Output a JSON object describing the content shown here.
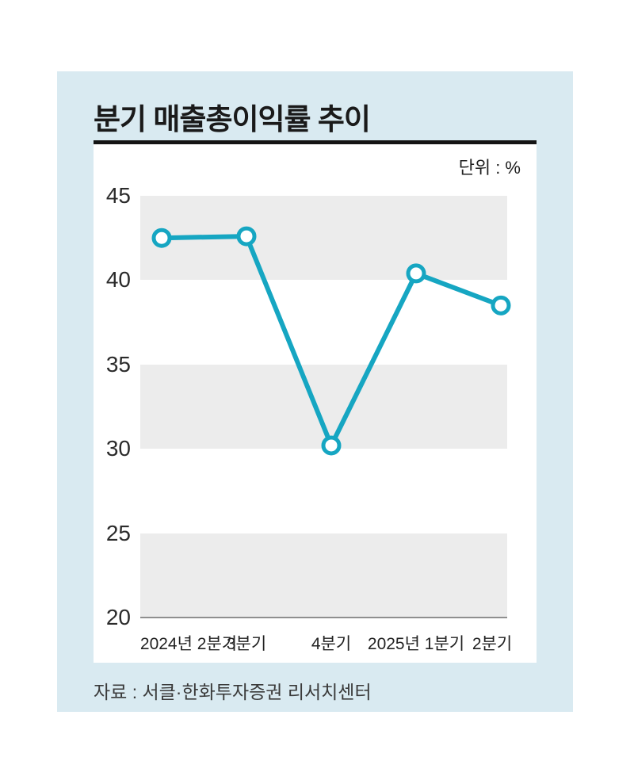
{
  "header": {
    "title": "분기 매출총이익률 추이",
    "unit_label": "단위 : %"
  },
  "source": "자료 : 서클·한화투자증권 리서치센터",
  "colors": {
    "panel_background": "#d9eaf1",
    "card_background": "#ffffff",
    "band_gray": "#ececec",
    "line_teal": "#16a6c2",
    "marker_fill": "#ffffff",
    "axis_line": "#8f8f8f",
    "title_text": "#1a1a1a"
  },
  "chart_data": {
    "type": "line",
    "title": "분기 매출총이익률 추이",
    "unit": "%",
    "categories": [
      "2024년 2분기",
      "3분기",
      "4분기",
      "2025년 1분기",
      "2분기"
    ],
    "values": [
      42.5,
      42.6,
      30.2,
      40.4,
      38.5
    ],
    "ylim": [
      20,
      45
    ],
    "yticks": [
      45,
      40,
      35,
      30,
      25,
      20
    ],
    "shaded_bands": [
      [
        40,
        45
      ],
      [
        30,
        35
      ],
      [
        20,
        25
      ]
    ],
    "xlabel": "",
    "ylabel": "",
    "legend": "none",
    "grid": "banded-rows",
    "line_color": "#16a6c2",
    "marker_style": "open-circle"
  }
}
